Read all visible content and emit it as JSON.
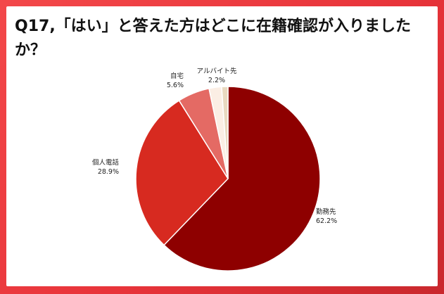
{
  "title": "Q17,「はい」と答えた方はどこに在籍確認が入りましたか？",
  "colors": {
    "background_red": "#e8343a",
    "card": "#ffffff"
  },
  "chart_data": {
    "type": "pie",
    "title": "Q17,「はい」と答えた方はどこに在籍確認が入りましたか？",
    "start": "12 o'clock, clockwise",
    "slices": [
      {
        "label": "勤務先",
        "value": 62.2,
        "value_label": "62.2%",
        "color": "#8e0000"
      },
      {
        "label": "個人電話",
        "value": 28.9,
        "value_label": "28.9%",
        "color": "#d72a20"
      },
      {
        "label": "自宅",
        "value": 5.6,
        "value_label": "5.6%",
        "color": "#e46a64"
      },
      {
        "label": "アルバイト先",
        "value": 2.2,
        "value_label": "2.2%",
        "color": "#fbeee4"
      },
      {
        "label": "",
        "value": 1.1,
        "value_label": "",
        "color": "#e9d9c0"
      }
    ]
  }
}
